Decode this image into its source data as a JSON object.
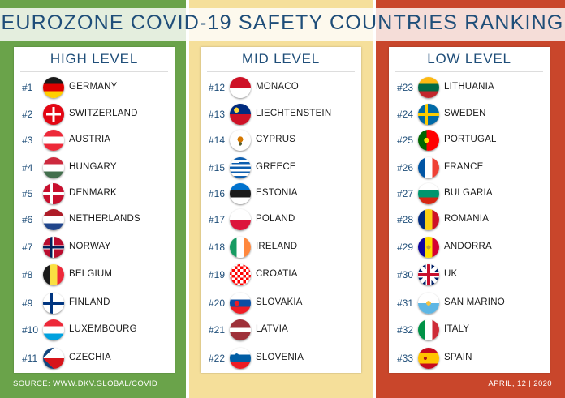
{
  "title": "EUROZONE COVID-19 SAFETY COUNTRIES RANKING",
  "columns": [
    {
      "heading": "HIGH LEVEL",
      "items": [
        {
          "rank": "#1",
          "name": "GERMANY",
          "flag": "germany-flag-icon"
        },
        {
          "rank": "#2",
          "name": "SWITZERLAND",
          "flag": "switzerland-flag-icon"
        },
        {
          "rank": "#3",
          "name": "AUSTRIA",
          "flag": "austria-flag-icon"
        },
        {
          "rank": "#4",
          "name": "HUNGARY",
          "flag": "hungary-flag-icon"
        },
        {
          "rank": "#5",
          "name": "DENMARK",
          "flag": "denmark-flag-icon"
        },
        {
          "rank": "#6",
          "name": "NETHERLANDS",
          "flag": "netherlands-flag-icon"
        },
        {
          "rank": "#7",
          "name": "NORWAY",
          "flag": "norway-flag-icon"
        },
        {
          "rank": "#8",
          "name": "BELGIUM",
          "flag": "belgium-flag-icon"
        },
        {
          "rank": "#9",
          "name": "FINLAND",
          "flag": "finland-flag-icon"
        },
        {
          "rank": "#10",
          "name": "LUXEMBOURG",
          "flag": "luxembourg-flag-icon"
        },
        {
          "rank": "#11",
          "name": "CZECHIA",
          "flag": "czechia-flag-icon"
        }
      ]
    },
    {
      "heading": "MID LEVEL",
      "items": [
        {
          "rank": "#12",
          "name": "MONACO",
          "flag": "monaco-flag-icon"
        },
        {
          "rank": "#13",
          "name": "LIECHTENSTEIN",
          "flag": "liechtenstein-flag-icon"
        },
        {
          "rank": "#14",
          "name": "CYPRUS",
          "flag": "cyprus-flag-icon"
        },
        {
          "rank": "#15",
          "name": "GREECE",
          "flag": "greece-flag-icon"
        },
        {
          "rank": "#16",
          "name": "ESTONIA",
          "flag": "estonia-flag-icon"
        },
        {
          "rank": "#17",
          "name": "POLAND",
          "flag": "poland-flag-icon"
        },
        {
          "rank": "#18",
          "name": "IRELAND",
          "flag": "ireland-flag-icon"
        },
        {
          "rank": "#19",
          "name": "CROATIA",
          "flag": "croatia-flag-icon"
        },
        {
          "rank": "#20",
          "name": "SLOVAKIA",
          "flag": "slovakia-flag-icon"
        },
        {
          "rank": "#21",
          "name": "LATVIA",
          "flag": "latvia-flag-icon"
        },
        {
          "rank": "#22",
          "name": "SLOVENIA",
          "flag": "slovenia-flag-icon"
        }
      ]
    },
    {
      "heading": "LOW LEVEL",
      "items": [
        {
          "rank": "#23",
          "name": "LITHUANIA",
          "flag": "lithuania-flag-icon"
        },
        {
          "rank": "#24",
          "name": "SWEDEN",
          "flag": "sweden-flag-icon"
        },
        {
          "rank": "#25",
          "name": "PORTUGAL",
          "flag": "portugal-flag-icon"
        },
        {
          "rank": "#26",
          "name": "FRANCE",
          "flag": "france-flag-icon"
        },
        {
          "rank": "#27",
          "name": "BULGARIA",
          "flag": "bulgaria-flag-icon"
        },
        {
          "rank": "#28",
          "name": "ROMANIA",
          "flag": "romania-flag-icon"
        },
        {
          "rank": "#29",
          "name": "ANDORRA",
          "flag": "andorra-flag-icon"
        },
        {
          "rank": "#30",
          "name": "UK",
          "flag": "uk-flag-icon"
        },
        {
          "rank": "#31",
          "name": "SAN MARINO",
          "flag": "san-marino-flag-icon"
        },
        {
          "rank": "#32",
          "name": "ITALY",
          "flag": "italy-flag-icon"
        },
        {
          "rank": "#33",
          "name": "SPAIN",
          "flag": "spain-flag-icon"
        }
      ]
    }
  ],
  "footer": {
    "source": "SOURCE: WWW.DKV.GLOBAL/COVID",
    "date": "APRIL, 12 | 2020"
  },
  "colors": {
    "high": "#6aa34a",
    "mid": "#f5df9a",
    "low": "#c9462b",
    "text": "#1f4e79"
  }
}
